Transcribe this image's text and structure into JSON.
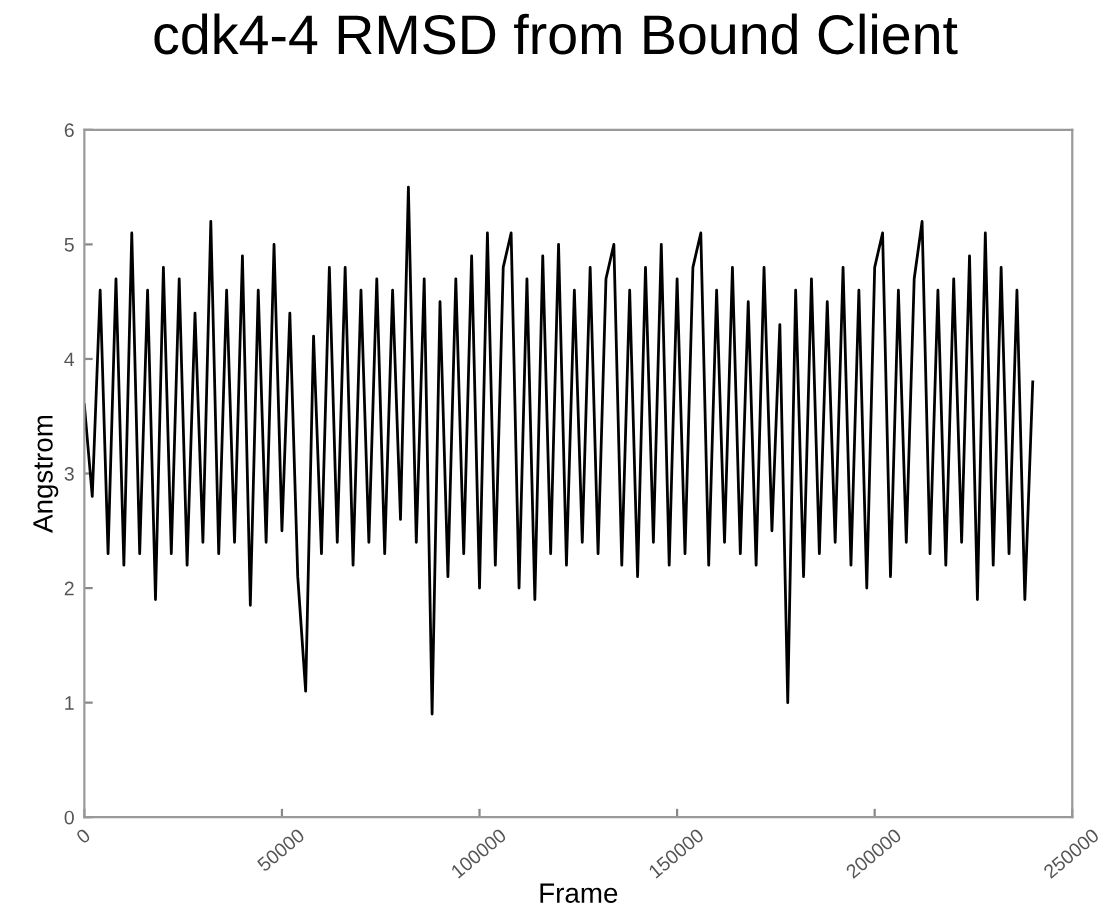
{
  "chart_data": {
    "type": "line",
    "title": "cdk4-4 RMSD from Bound Client",
    "xlabel": "Frame",
    "ylabel": "Angstrom",
    "x": [
      0,
      2000,
      4000,
      6000,
      8000,
      10000,
      12000,
      14000,
      16000,
      18000,
      20000,
      22000,
      24000,
      26000,
      28000,
      30000,
      32000,
      34000,
      36000,
      38000,
      40000,
      42000,
      44000,
      46000,
      48000,
      50000,
      52000,
      54000,
      56000,
      58000,
      60000,
      62000,
      64000,
      66000,
      68000,
      70000,
      72000,
      74000,
      76000,
      78000,
      80000,
      82000,
      84000,
      86000,
      88000,
      90000,
      92000,
      94000,
      96000,
      98000,
      100000,
      102000,
      104000,
      106000,
      108000,
      110000,
      112000,
      114000,
      116000,
      118000,
      120000,
      122000,
      124000,
      126000,
      128000,
      130000,
      132000,
      134000,
      136000,
      138000,
      140000,
      142000,
      144000,
      146000,
      148000,
      150000,
      152000,
      154000,
      156000,
      158000,
      160000,
      162000,
      164000,
      166000,
      168000,
      170000,
      172000,
      174000,
      176000,
      178000,
      180000,
      182000,
      184000,
      186000,
      188000,
      190000,
      192000,
      194000,
      196000,
      198000,
      200000,
      202000,
      204000,
      206000,
      208000,
      210000,
      212000,
      214000,
      216000,
      218000,
      220000,
      222000,
      224000,
      226000,
      228000,
      230000,
      232000,
      234000,
      236000,
      238000,
      240000
    ],
    "series": [
      {
        "color": "#000000",
        "values": [
          3.6,
          2.8,
          4.6,
          2.3,
          4.7,
          2.2,
          5.1,
          2.3,
          4.6,
          1.9,
          4.8,
          2.3,
          4.7,
          2.2,
          4.4,
          2.4,
          5.2,
          2.3,
          4.6,
          2.4,
          4.9,
          1.85,
          4.6,
          2.4,
          5.0,
          2.5,
          4.4,
          2.1,
          1.1,
          4.2,
          2.3,
          4.8,
          2.4,
          4.8,
          2.2,
          4.6,
          2.4,
          4.7,
          2.3,
          4.6,
          2.6,
          5.5,
          2.4,
          4.7,
          0.9,
          4.5,
          2.1,
          4.7,
          2.3,
          4.9,
          2.0,
          5.1,
          2.2,
          4.8,
          5.1,
          2.0,
          4.7,
          1.9,
          4.9,
          2.3,
          5.0,
          2.2,
          4.6,
          2.4,
          4.8,
          2.3,
          4.7,
          5.0,
          2.2,
          4.6,
          2.1,
          4.8,
          2.4,
          5.0,
          2.2,
          4.7,
          2.3,
          4.8,
          5.1,
          2.2,
          4.6,
          2.4,
          4.8,
          2.3,
          4.5,
          2.2,
          4.8,
          2.5,
          4.3,
          1.0,
          4.6,
          2.1,
          4.7,
          2.3,
          4.5,
          2.4,
          4.8,
          2.2,
          4.6,
          2.0,
          4.8,
          5.1,
          2.1,
          4.6,
          2.4,
          4.7,
          5.2,
          2.3,
          4.6,
          2.2,
          4.7,
          2.4,
          4.9,
          1.9,
          5.1,
          2.2,
          4.8,
          2.3,
          4.6,
          1.9,
          3.8
        ]
      }
    ],
    "xlim": [
      0,
      250000
    ],
    "xticks": [
      0,
      50000,
      100000,
      150000,
      200000,
      250000
    ],
    "ylim": [
      0,
      6
    ],
    "yticks": [
      0,
      1,
      2,
      3,
      4,
      5,
      6
    ],
    "grid": false,
    "legend": false,
    "marker": "none",
    "line_style": "solid"
  }
}
